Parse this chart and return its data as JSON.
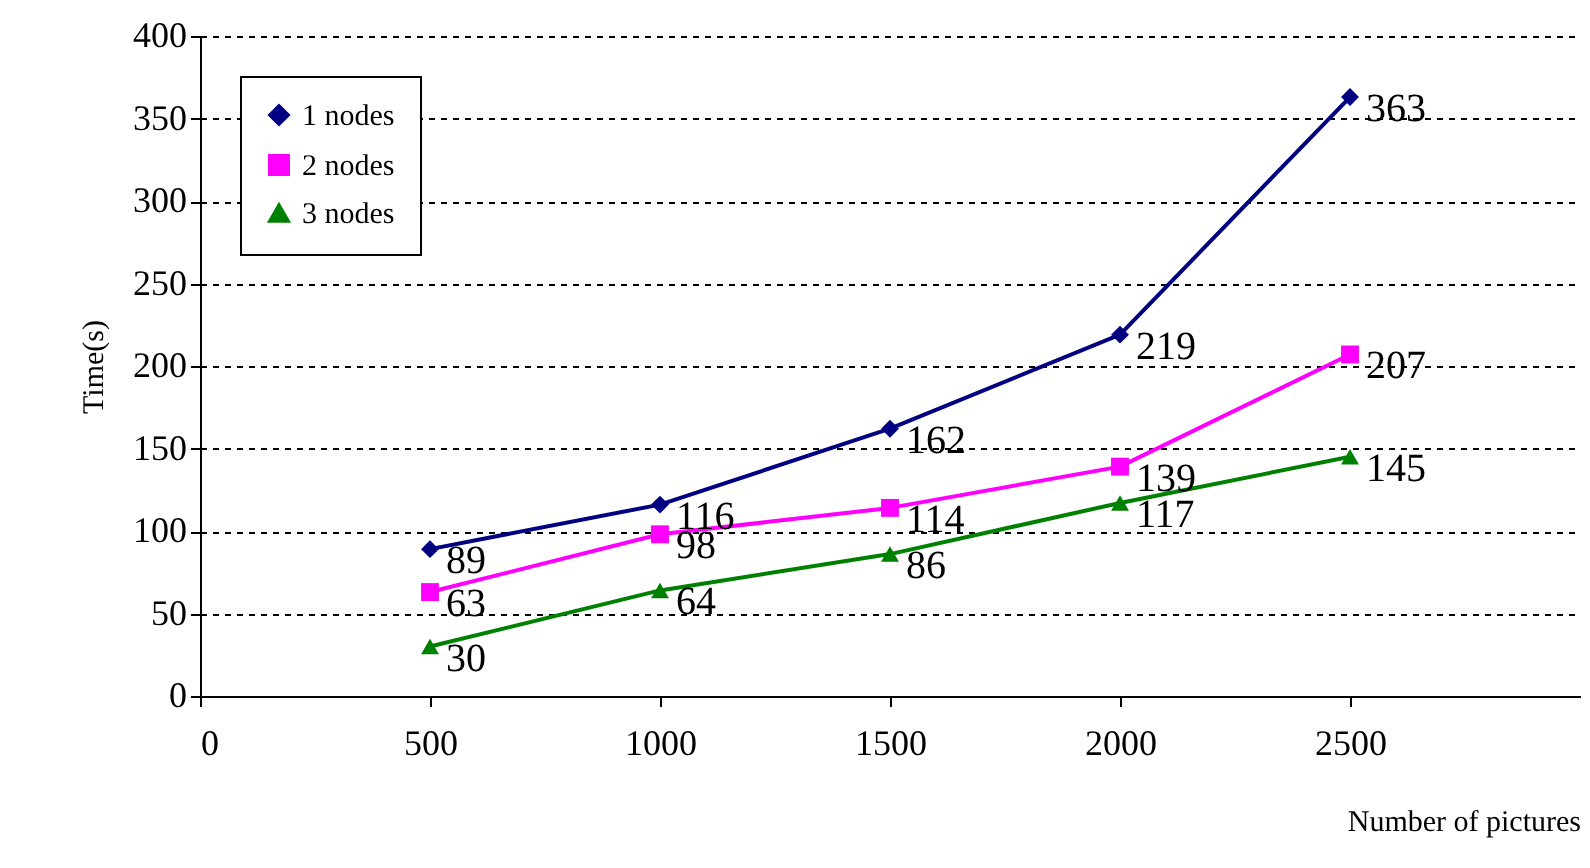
{
  "chart_data": {
    "type": "line",
    "xlabel": "Number of pictures",
    "ylabel": "Time(s)",
    "x": [
      500,
      1000,
      1500,
      2000,
      2500
    ],
    "series": [
      {
        "name": "1 nodes",
        "color": "#000080",
        "marker": "diamond",
        "values": [
          89,
          116,
          162,
          219,
          363
        ]
      },
      {
        "name": "2 nodes",
        "color": "#ff00ff",
        "marker": "square",
        "values": [
          63,
          98,
          114,
          139,
          207
        ]
      },
      {
        "name": "3 nodes",
        "color": "#008000",
        "marker": "triangle",
        "values": [
          30,
          64,
          86,
          117,
          145
        ]
      }
    ],
    "xlim": [
      0,
      3000
    ],
    "xticks": [
      0,
      500,
      1000,
      1500,
      2000,
      2500
    ],
    "ylim": [
      0,
      400
    ],
    "yticks": [
      0,
      50,
      100,
      150,
      200,
      250,
      300,
      350,
      400
    ],
    "grid": "y",
    "legend": "top left",
    "data_labels": true,
    "line_style": "solid"
  }
}
